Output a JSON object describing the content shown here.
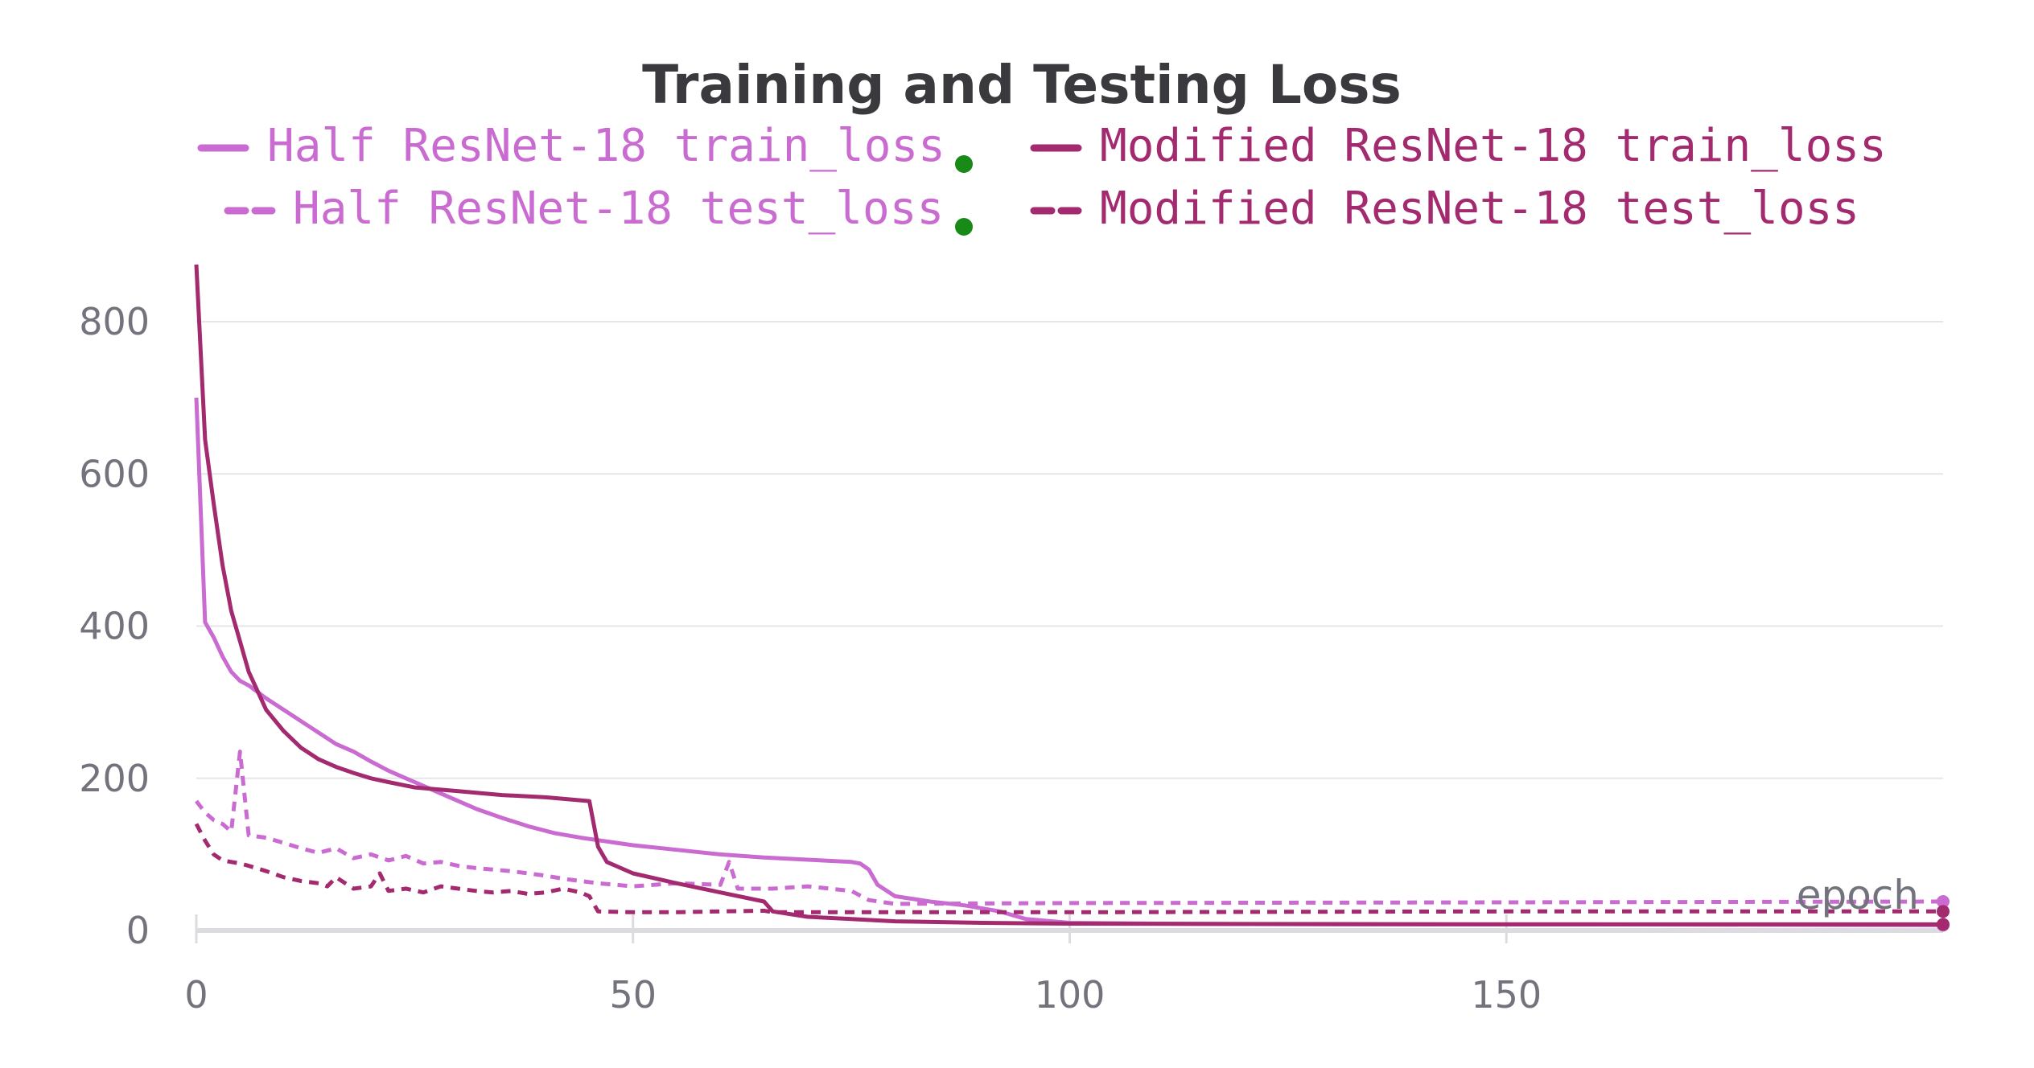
{
  "chart_data": {
    "type": "line",
    "title": "Training and Testing Loss",
    "xlabel": "epoch",
    "ylabel": "",
    "xlim": [
      0,
      200
    ],
    "ylim": [
      0,
      880
    ],
    "x_ticks": [
      "0",
      "50",
      "100",
      "150"
    ],
    "y_ticks": [
      "0",
      "200",
      "400",
      "600",
      "800"
    ],
    "grid": true,
    "legend_position": "top",
    "series": [
      {
        "name": "Half ResNet-18 train_loss",
        "color": "#c96bd1",
        "dash": "solid",
        "marker": "green-dot",
        "points": [
          [
            0,
            700
          ],
          [
            1,
            405
          ],
          [
            2,
            385
          ],
          [
            3,
            360
          ],
          [
            4,
            340
          ],
          [
            5,
            328
          ],
          [
            6,
            322
          ],
          [
            8,
            305
          ],
          [
            10,
            290
          ],
          [
            12,
            275
          ],
          [
            14,
            260
          ],
          [
            16,
            245
          ],
          [
            18,
            235
          ],
          [
            20,
            222
          ],
          [
            22,
            210
          ],
          [
            24,
            200
          ],
          [
            26,
            190
          ],
          [
            28,
            180
          ],
          [
            30,
            170
          ],
          [
            32,
            160
          ],
          [
            35,
            148
          ],
          [
            38,
            137
          ],
          [
            41,
            128
          ],
          [
            44,
            122
          ],
          [
            47,
            117
          ],
          [
            50,
            112
          ],
          [
            55,
            106
          ],
          [
            60,
            100
          ],
          [
            65,
            96
          ],
          [
            70,
            93
          ],
          [
            75,
            90
          ],
          [
            76,
            88
          ],
          [
            77,
            80
          ],
          [
            78,
            60
          ],
          [
            80,
            45
          ],
          [
            84,
            38
          ],
          [
            88,
            33
          ],
          [
            92,
            25
          ],
          [
            95,
            15
          ],
          [
            100,
            10
          ],
          [
            110,
            9
          ],
          [
            130,
            8
          ],
          [
            160,
            8
          ],
          [
            200,
            7
          ]
        ]
      },
      {
        "name": "Half ResNet-18 test_loss",
        "color": "#c96bd1",
        "dash": "dashed",
        "marker": "green-dot",
        "points": [
          [
            0,
            170
          ],
          [
            1,
            155
          ],
          [
            2,
            145
          ],
          [
            3,
            140
          ],
          [
            4,
            130
          ],
          [
            5,
            235
          ],
          [
            6,
            125
          ],
          [
            8,
            122
          ],
          [
            10,
            115
          ],
          [
            12,
            108
          ],
          [
            14,
            102
          ],
          [
            16,
            108
          ],
          [
            18,
            95
          ],
          [
            20,
            100
          ],
          [
            22,
            92
          ],
          [
            24,
            98
          ],
          [
            26,
            88
          ],
          [
            28,
            90
          ],
          [
            30,
            85
          ],
          [
            32,
            82
          ],
          [
            34,
            80
          ],
          [
            36,
            78
          ],
          [
            38,
            75
          ],
          [
            40,
            72
          ],
          [
            42,
            68
          ],
          [
            44,
            65
          ],
          [
            46,
            62
          ],
          [
            48,
            60
          ],
          [
            50,
            58
          ],
          [
            55,
            62
          ],
          [
            60,
            60
          ],
          [
            61,
            90
          ],
          [
            62,
            55
          ],
          [
            66,
            55
          ],
          [
            70,
            58
          ],
          [
            75,
            52
          ],
          [
            77,
            40
          ],
          [
            80,
            35
          ],
          [
            100,
            36
          ],
          [
            150,
            37
          ],
          [
            200,
            38
          ]
        ]
      },
      {
        "name": "Modified ResNet-18 train_loss",
        "color": "#a32a6e",
        "dash": "solid",
        "marker": "",
        "points": [
          [
            0,
            875
          ],
          [
            1,
            645
          ],
          [
            2,
            560
          ],
          [
            3,
            480
          ],
          [
            4,
            420
          ],
          [
            5,
            380
          ],
          [
            6,
            340
          ],
          [
            8,
            290
          ],
          [
            10,
            262
          ],
          [
            12,
            240
          ],
          [
            14,
            225
          ],
          [
            16,
            215
          ],
          [
            18,
            207
          ],
          [
            20,
            200
          ],
          [
            22,
            195
          ],
          [
            25,
            188
          ],
          [
            30,
            183
          ],
          [
            35,
            178
          ],
          [
            40,
            175
          ],
          [
            45,
            170
          ],
          [
            46,
            110
          ],
          [
            47,
            90
          ],
          [
            50,
            75
          ],
          [
            55,
            62
          ],
          [
            60,
            50
          ],
          [
            65,
            38
          ],
          [
            66,
            25
          ],
          [
            70,
            18
          ],
          [
            75,
            15
          ],
          [
            80,
            12
          ],
          [
            90,
            10
          ],
          [
            100,
            9
          ],
          [
            150,
            8
          ],
          [
            200,
            8
          ]
        ]
      },
      {
        "name": "Modified ResNet-18 test_loss",
        "color": "#a32a6e",
        "dash": "dashed",
        "marker": "",
        "points": [
          [
            0,
            140
          ],
          [
            1,
            118
          ],
          [
            2,
            100
          ],
          [
            3,
            92
          ],
          [
            5,
            88
          ],
          [
            6,
            85
          ],
          [
            8,
            78
          ],
          [
            10,
            70
          ],
          [
            12,
            65
          ],
          [
            14,
            62
          ],
          [
            15,
            58
          ],
          [
            16,
            70
          ],
          [
            18,
            55
          ],
          [
            20,
            58
          ],
          [
            21,
            75
          ],
          [
            22,
            52
          ],
          [
            24,
            55
          ],
          [
            26,
            50
          ],
          [
            28,
            58
          ],
          [
            30,
            55
          ],
          [
            32,
            52
          ],
          [
            34,
            50
          ],
          [
            36,
            52
          ],
          [
            38,
            48
          ],
          [
            40,
            50
          ],
          [
            42,
            55
          ],
          [
            44,
            50
          ],
          [
            45,
            45
          ],
          [
            46,
            25
          ],
          [
            50,
            24
          ],
          [
            55,
            24
          ],
          [
            60,
            25
          ],
          [
            65,
            26
          ],
          [
            66,
            24
          ],
          [
            70,
            24
          ],
          [
            100,
            24
          ],
          [
            150,
            25
          ],
          [
            200,
            25
          ]
        ]
      }
    ]
  }
}
